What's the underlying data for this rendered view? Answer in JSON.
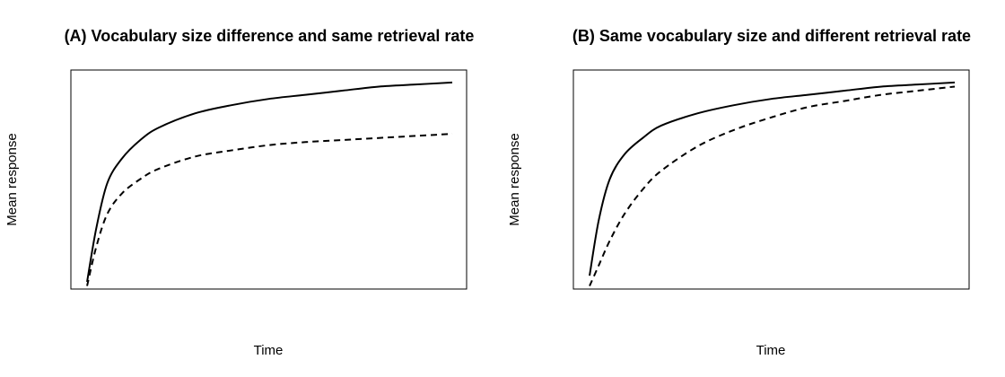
{
  "chart_data": [
    {
      "type": "line",
      "title": "(A) Vocabulary size difference and same retrieval rate",
      "xlabel": "Time",
      "ylabel": "Mean response",
      "xlim": [
        0,
        1
      ],
      "ylim": [
        0,
        1
      ],
      "grid": false,
      "series": [
        {
          "style": "solid",
          "x": [
            0.005,
            0.03,
            0.06,
            0.1,
            0.15,
            0.2,
            0.3,
            0.4,
            0.5,
            0.6,
            0.7,
            0.8,
            0.9,
            1.0
          ],
          "y": [
            0.0,
            0.26,
            0.48,
            0.6,
            0.69,
            0.75,
            0.82,
            0.86,
            0.89,
            0.91,
            0.93,
            0.95,
            0.96,
            0.97
          ]
        },
        {
          "style": "dashed",
          "x": [
            0.005,
            0.03,
            0.06,
            0.1,
            0.15,
            0.2,
            0.3,
            0.4,
            0.5,
            0.6,
            0.7,
            0.8,
            0.9,
            1.0
          ],
          "y": [
            -0.02,
            0.17,
            0.33,
            0.43,
            0.5,
            0.55,
            0.61,
            0.64,
            0.665,
            0.68,
            0.69,
            0.7,
            0.71,
            0.72
          ]
        }
      ]
    },
    {
      "type": "line",
      "title": "(B) Same vocabulary size and different retrieval rate",
      "xlabel": "Time",
      "ylabel": "Mean response",
      "xlim": [
        0,
        1
      ],
      "ylim": [
        0,
        1
      ],
      "grid": false,
      "series": [
        {
          "style": "solid",
          "x": [
            0.005,
            0.03,
            0.06,
            0.1,
            0.15,
            0.2,
            0.3,
            0.4,
            0.5,
            0.6,
            0.7,
            0.8,
            0.9,
            1.0
          ],
          "y": [
            0.03,
            0.3,
            0.5,
            0.62,
            0.7,
            0.76,
            0.82,
            0.86,
            0.89,
            0.91,
            0.93,
            0.95,
            0.96,
            0.97
          ]
        },
        {
          "style": "dashed",
          "x": [
            0.005,
            0.03,
            0.06,
            0.1,
            0.15,
            0.2,
            0.3,
            0.4,
            0.5,
            0.6,
            0.7,
            0.8,
            0.9,
            1.0
          ],
          "y": [
            -0.02,
            0.08,
            0.2,
            0.33,
            0.45,
            0.54,
            0.66,
            0.74,
            0.8,
            0.85,
            0.88,
            0.91,
            0.93,
            0.95
          ]
        }
      ]
    }
  ]
}
